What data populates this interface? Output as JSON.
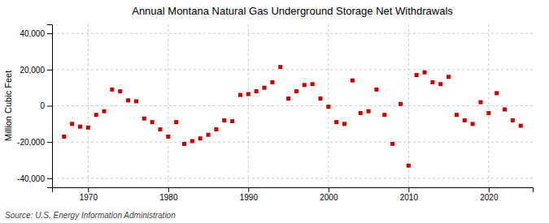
{
  "chart_data": {
    "type": "scatter",
    "title": "Annual Montana Natural Gas Underground Storage Net Withdrawals",
    "ylabel": "Million Cubic Feet",
    "annotations": [
      "Source: U.S. Energy Information Administration"
    ],
    "color": "#cc0000",
    "marker": "square",
    "grid": true,
    "xlim": [
      1965.5,
      2025.5
    ],
    "ylim": [
      -45000,
      45000
    ],
    "xticks": [
      1970,
      1980,
      1990,
      2000,
      2010,
      2020
    ],
    "yticks": [
      {
        "value": -40000,
        "label": "-40,000"
      },
      {
        "value": -20000,
        "label": "-20,000"
      },
      0,
      {
        "value": 20000,
        "label": "20,000"
      },
      {
        "value": 40000,
        "label": "40,000"
      }
    ],
    "x": [
      1967,
      1968,
      1969,
      1970,
      1971,
      1972,
      1973,
      1974,
      1975,
      1976,
      1977,
      1978,
      1979,
      1980,
      1981,
      1982,
      1983,
      1984,
      1985,
      1986,
      1987,
      1988,
      1989,
      1990,
      1991,
      1992,
      1993,
      1994,
      1995,
      1996,
      1997,
      1998,
      1999,
      2000,
      2001,
      2002,
      2003,
      2004,
      2005,
      2006,
      2007,
      2008,
      2009,
      2010,
      2011,
      2012,
      2013,
      2014,
      2015,
      2016,
      2017,
      2018,
      2019,
      2020,
      2021,
      2022,
      2023,
      2024
    ],
    "values": [
      -17000,
      -10000,
      -11500,
      -12000,
      -5000,
      -3000,
      9000,
      8000,
      3000,
      2500,
      -7000,
      -9000,
      -13000,
      -17000,
      -9000,
      -21000,
      -19500,
      -18000,
      -16000,
      -13000,
      -8000,
      -8500,
      6000,
      6500,
      8000,
      10000,
      13000,
      21500,
      4000,
      8000,
      11500,
      12000,
      4000,
      -500,
      -9000,
      -10000,
      14000,
      -4000,
      -3000,
      9000,
      -5000,
      -21000,
      1000,
      -33000,
      17000,
      18500,
      13000,
      12000,
      16000,
      -5000,
      -8000,
      -10000,
      2000,
      -4000,
      7000,
      -2000,
      -8000,
      -11000
    ]
  }
}
